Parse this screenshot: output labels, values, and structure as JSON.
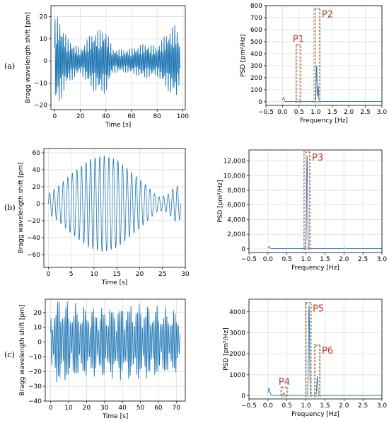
{
  "rows": [
    {
      "label": "(a)",
      "time": {
        "xlabel": "Time [s]",
        "ylabel": "Bragg wavelength shift [pm]",
        "xlim": [
          -3,
          102
        ],
        "ylim": [
          -22,
          25
        ],
        "xticks": [
          0,
          20,
          40,
          60,
          80,
          100
        ],
        "yticks": [
          -20,
          -10,
          0,
          10,
          20
        ],
        "signal": {
          "t_end": 98,
          "components": [
            {
              "amp": 8,
              "freq": 1.08
            },
            {
              "amp": 3.5,
              "freq": 0.48
            }
          ],
          "envelope": [
            [
              0,
              1.7
            ],
            [
              3,
              1.8
            ],
            [
              10,
              0.9
            ],
            [
              20,
              0.5
            ],
            [
              30,
              1.2
            ],
            [
              40,
              1.3
            ],
            [
              45,
              0.5
            ],
            [
              55,
              0.45
            ],
            [
              65,
              0.6
            ],
            [
              70,
              0.7
            ],
            [
              80,
              0.6
            ],
            [
              90,
              1.3
            ],
            [
              95,
              1.5
            ],
            [
              98,
              0.7
            ]
          ]
        }
      },
      "psd": {
        "xlabel": "Frequency [Hz]",
        "ylabel": "PSD [pm²/Hz]",
        "xlim": [
          -0.5,
          3.0
        ],
        "ylim": [
          -30,
          800
        ],
        "xticks": [
          "−0.5",
          "0.0",
          "0.5",
          "1.0",
          "1.5",
          "2.0",
          "2.5",
          "3.0"
        ],
        "xtick_values": [
          -0.5,
          0.0,
          0.5,
          1.0,
          1.5,
          2.0,
          2.5,
          3.0
        ],
        "yticks": [
          "0",
          "100",
          "200",
          "300",
          "400",
          "500",
          "600",
          "700",
          "800"
        ],
        "ytick_values": [
          0,
          100,
          200,
          300,
          400,
          500,
          600,
          700,
          800
        ],
        "peaks": [
          {
            "f": 0.03,
            "amp": 35,
            "w": 0.03
          },
          {
            "f": 0.48,
            "amp": 6,
            "w": 0.03
          },
          {
            "f": 1.03,
            "amp": 300,
            "w": 0.018
          },
          {
            "f": 1.08,
            "amp": 130,
            "w": 0.015
          }
        ],
        "baseline": 2,
        "boxes": [
          {
            "name": "P1",
            "f0": 0.4,
            "f1": 0.56,
            "y0": -5,
            "y1": 480
          },
          {
            "name": "P2",
            "f0": 0.95,
            "f1": 1.14,
            "y0": -5,
            "y1": 780
          }
        ]
      }
    },
    {
      "label": "(b)",
      "time": {
        "xlabel": "Time [s]",
        "ylabel": "Bragg wavelength shift [pm]",
        "xlim": [
          -1,
          30
        ],
        "ylim": [
          -75,
          65
        ],
        "xticks": [
          0,
          5,
          10,
          15,
          20,
          25,
          30
        ],
        "yticks": [
          -60,
          -40,
          -20,
          0,
          20,
          40,
          60
        ],
        "signal": {
          "t_end": 29,
          "components": [
            {
              "amp": 1,
              "freq": 1.0
            }
          ],
          "envelope": [
            [
              0,
              12
            ],
            [
              2,
              20
            ],
            [
              5,
              35
            ],
            [
              9,
              52
            ],
            [
              12,
              57
            ],
            [
              15,
              52
            ],
            [
              18,
              38
            ],
            [
              21,
              24
            ],
            [
              24,
              8
            ],
            [
              26,
              10
            ],
            [
              28,
              22
            ],
            [
              29,
              18
            ]
          ]
        }
      },
      "psd": {
        "xlabel": "Frequency [Hz]",
        "ylabel": "PSD [pm²/Hz]",
        "xlim": [
          -0.5,
          3.0
        ],
        "ylim": [
          -500,
          13500
        ],
        "xticks": [
          "−0.5",
          "0.0",
          "0.5",
          "1.0",
          "1.5",
          "2.0",
          "2.5",
          "3.0"
        ],
        "xtick_values": [
          -0.5,
          0.0,
          0.5,
          1.0,
          1.5,
          2.0,
          2.5,
          3.0
        ],
        "yticks": [
          "0",
          "2,000",
          "4,000",
          "6,000",
          "8,000",
          "10,000",
          "12,000"
        ],
        "ytick_values": [
          0,
          2000,
          4000,
          6000,
          8000,
          10000,
          12000
        ],
        "peaks": [
          {
            "f": 0.03,
            "amp": 300,
            "w": 0.03
          },
          {
            "f": 1.03,
            "amp": 12800,
            "w": 0.018
          },
          {
            "f": 2.03,
            "amp": 60,
            "w": 0.03
          }
        ],
        "baseline": 30,
        "boxes": [
          {
            "name": "P3",
            "f0": 0.94,
            "f1": 1.12,
            "y0": -80,
            "y1": 13300
          }
        ]
      }
    },
    {
      "label": "(c)",
      "time": {
        "xlabel": "Time [s]",
        "ylabel": "Bragg wavelength shift [pm]",
        "xlim": [
          -3,
          75
        ],
        "ylim": [
          -40,
          29
        ],
        "xticks": [
          0,
          10,
          20,
          30,
          40,
          50,
          60,
          70
        ],
        "yticks": [
          -40,
          -30,
          -20,
          -10,
          0,
          10,
          20
        ],
        "signal": {
          "t_end": 72,
          "components": [
            {
              "amp": 16,
              "freq": 1.1
            },
            {
              "amp": 6,
              "freq": 1.3
            },
            {
              "amp": 3,
              "freq": 0.42
            }
          ],
          "envelope": [
            [
              0,
              0.9
            ],
            [
              5,
              1.3
            ],
            [
              10,
              1.1
            ],
            [
              20,
              1.0
            ],
            [
              30,
              1.0
            ],
            [
              40,
              1.05
            ],
            [
              50,
              1.1
            ],
            [
              60,
              1.0
            ],
            [
              70,
              0.9
            ],
            [
              72,
              0.8
            ]
          ]
        }
      },
      "psd": {
        "xlabel": "Frequency [Hz]",
        "ylabel": "PSD [pm²/Hz]",
        "xlim": [
          -0.5,
          3.0
        ],
        "ylim": [
          -150,
          4600
        ],
        "xticks": [
          "−0.5",
          "0.0",
          "0.5",
          "1.0",
          "1.5",
          "2.0",
          "2.5",
          "3.0"
        ],
        "xtick_values": [
          -0.5,
          0.0,
          0.5,
          1.0,
          1.5,
          2.0,
          2.5,
          3.0
        ],
        "yticks": [
          "0",
          "1000",
          "2000",
          "3000",
          "4000"
        ],
        "ytick_values": [
          0,
          1000,
          2000,
          3000,
          4000
        ],
        "peaks": [
          {
            "f": 0.03,
            "amp": 350,
            "w": 0.03
          },
          {
            "f": 0.42,
            "amp": 120,
            "w": 0.025
          },
          {
            "f": 1.08,
            "amp": 4300,
            "w": 0.02
          },
          {
            "f": 1.3,
            "amp": 900,
            "w": 0.02
          }
        ],
        "baseline": 15,
        "boxes": [
          {
            "name": "P4",
            "f0": 0.34,
            "f1": 0.52,
            "y0": -50,
            "y1": 420
          },
          {
            "name": "P5",
            "f0": 0.98,
            "f1": 1.14,
            "y0": -50,
            "y1": 4450
          },
          {
            "name": "P6",
            "f0": 1.22,
            "f1": 1.38,
            "y0": -50,
            "y1": 2450
          }
        ]
      }
    }
  ],
  "colors": {
    "line": "#1f77b4",
    "grid": "#d9d9d9",
    "box_green": "#4a8a3a",
    "box_red": "#e24a3b",
    "label_red": "#c0392b"
  }
}
